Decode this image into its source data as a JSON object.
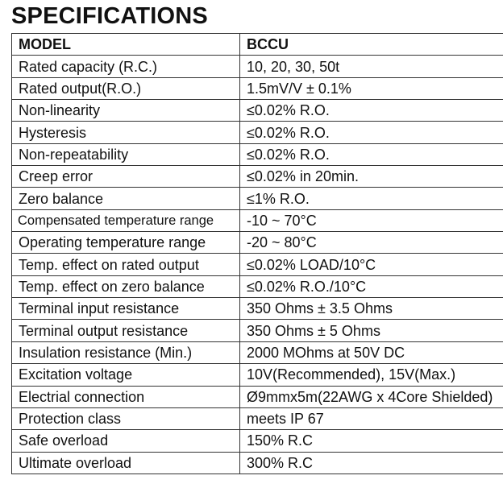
{
  "title": "SPECIFICATIONS",
  "header": {
    "label": "MODEL",
    "value": "BCCU"
  },
  "rows": [
    {
      "label": "Rated capacity (R.C.)",
      "value": "10, 20, 30, 50t"
    },
    {
      "label": "Rated output(R.O.)",
      "value": "1.5mV/V ± 0.1%"
    },
    {
      "label": "Non-linearity",
      "value": "≤0.02% R.O."
    },
    {
      "label": "Hysteresis",
      "value": "≤0.02% R.O."
    },
    {
      "label": "Non-repeatability",
      "value": "≤0.02% R.O."
    },
    {
      "label": "Creep error",
      "value": "≤0.02% in 20min."
    },
    {
      "label": "Zero balance",
      "value": "≤1% R.O."
    },
    {
      "label": "Compensated temperature range",
      "value": "-10 ~ 70°C"
    },
    {
      "label": "Operating temperature range",
      "value": "-20 ~ 80°C"
    },
    {
      "label": "Temp. effect on rated output",
      "value": "≤0.02% LOAD/10°C"
    },
    {
      "label": "Temp. effect on zero balance",
      "value": "≤0.02% R.O./10°C"
    },
    {
      "label": "Terminal input resistance",
      "value": "350 Ohms ± 3.5 Ohms"
    },
    {
      "label": "Terminal output resistance",
      "value": "350 Ohms ± 5 Ohms"
    },
    {
      "label": "Insulation resistance (Min.)",
      "value": "2000 MOhms at 50V DC"
    },
    {
      "label": "Excitation voltage",
      "value": "10V(Recommended), 15V(Max.)"
    },
    {
      "label": "Electrial connection",
      "value": "Ø9mmx5m(22AWG x 4Core Shielded)"
    },
    {
      "label": "Protection class",
      "value": "meets IP 67"
    },
    {
      "label": "Safe overload",
      "value": "150% R.C"
    },
    {
      "label": "Ultimate overload",
      "value": "300% R.C"
    }
  ]
}
